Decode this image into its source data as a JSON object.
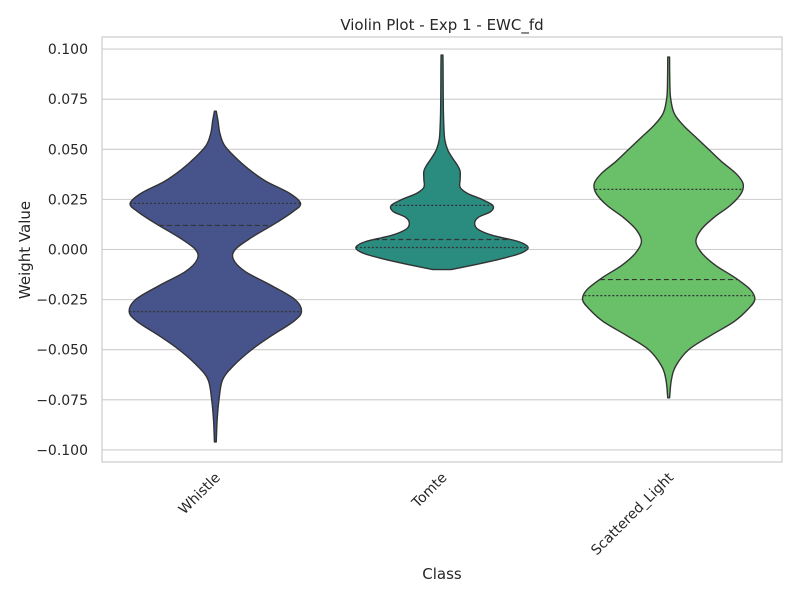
{
  "chart_data": {
    "type": "violin",
    "title": "Violin Plot - Exp 1 - EWC_fd",
    "xlabel": "Class",
    "ylabel": "Weight Value",
    "ylim": [
      -0.106,
      0.106
    ],
    "yticks": [
      0.1,
      0.075,
      0.05,
      0.025,
      0.0,
      -0.025,
      -0.05,
      -0.075,
      -0.1
    ],
    "ytick_labels": [
      "0.100",
      "0.075",
      "0.050",
      "0.025",
      "0.000",
      "−0.025",
      "−0.050",
      "−0.075",
      "−0.100"
    ],
    "grid": "horizontal",
    "categories": [
      "Whistle",
      "Tomte",
      "Scattered_Light"
    ],
    "violins": [
      {
        "category": "Whistle",
        "color": "#46548b",
        "min": -0.096,
        "max": 0.069,
        "quartiles": {
          "q1": -0.031,
          "median": 0.012,
          "q3": 0.023
        },
        "density": [
          [
            -0.096,
            0.01
          ],
          [
            -0.085,
            0.02
          ],
          [
            -0.075,
            0.04
          ],
          [
            -0.065,
            0.08
          ],
          [
            -0.058,
            0.2
          ],
          [
            -0.05,
            0.4
          ],
          [
            -0.043,
            0.62
          ],
          [
            -0.036,
            0.86
          ],
          [
            -0.031,
            0.95
          ],
          [
            -0.025,
            0.88
          ],
          [
            -0.018,
            0.62
          ],
          [
            -0.011,
            0.33
          ],
          [
            -0.005,
            0.2
          ],
          [
            0.0,
            0.22
          ],
          [
            0.006,
            0.4
          ],
          [
            0.013,
            0.66
          ],
          [
            0.019,
            0.86
          ],
          [
            0.023,
            0.94
          ],
          [
            0.028,
            0.82
          ],
          [
            0.034,
            0.56
          ],
          [
            0.04,
            0.37
          ],
          [
            0.046,
            0.22
          ],
          [
            0.052,
            0.1
          ],
          [
            0.058,
            0.05
          ],
          [
            0.064,
            0.03
          ],
          [
            0.069,
            0.01
          ]
        ]
      },
      {
        "category": "Tomte",
        "color": "#2a8b7f",
        "min": -0.01,
        "max": 0.097,
        "quartiles": {
          "q1": 0.001,
          "median": 0.005,
          "q3": 0.022
        },
        "density": [
          [
            -0.01,
            0.1
          ],
          [
            -0.008,
            0.32
          ],
          [
            -0.005,
            0.62
          ],
          [
            -0.002,
            0.86
          ],
          [
            0.001,
            0.95
          ],
          [
            0.004,
            0.84
          ],
          [
            0.007,
            0.56
          ],
          [
            0.01,
            0.4
          ],
          [
            0.013,
            0.36
          ],
          [
            0.016,
            0.4
          ],
          [
            0.019,
            0.54
          ],
          [
            0.022,
            0.56
          ],
          [
            0.025,
            0.44
          ],
          [
            0.028,
            0.28
          ],
          [
            0.031,
            0.2
          ],
          [
            0.035,
            0.2
          ],
          [
            0.039,
            0.2
          ],
          [
            0.042,
            0.17
          ],
          [
            0.046,
            0.11
          ],
          [
            0.05,
            0.06
          ],
          [
            0.055,
            0.03
          ],
          [
            0.062,
            0.02
          ],
          [
            0.07,
            0.015
          ],
          [
            0.08,
            0.013
          ],
          [
            0.09,
            0.012
          ],
          [
            0.097,
            0.01
          ]
        ]
      },
      {
        "category": "Scattered_Light",
        "color": "#6abf69",
        "min": -0.074,
        "max": 0.096,
        "quartiles": {
          "q1": -0.023,
          "median": -0.015,
          "q3": 0.03
        },
        "density": [
          [
            -0.074,
            0.01
          ],
          [
            -0.065,
            0.03
          ],
          [
            -0.058,
            0.08
          ],
          [
            -0.05,
            0.22
          ],
          [
            -0.043,
            0.46
          ],
          [
            -0.036,
            0.72
          ],
          [
            -0.03,
            0.87
          ],
          [
            -0.025,
            0.95
          ],
          [
            -0.02,
            0.9
          ],
          [
            -0.014,
            0.73
          ],
          [
            -0.008,
            0.52
          ],
          [
            -0.002,
            0.37
          ],
          [
            0.004,
            0.3
          ],
          [
            0.01,
            0.36
          ],
          [
            0.016,
            0.5
          ],
          [
            0.022,
            0.68
          ],
          [
            0.028,
            0.8
          ],
          [
            0.033,
            0.82
          ],
          [
            0.038,
            0.74
          ],
          [
            0.044,
            0.58
          ],
          [
            0.05,
            0.44
          ],
          [
            0.056,
            0.3
          ],
          [
            0.062,
            0.16
          ],
          [
            0.068,
            0.06
          ],
          [
            0.076,
            0.02
          ],
          [
            0.086,
            0.012
          ],
          [
            0.096,
            0.01
          ]
        ]
      }
    ]
  }
}
